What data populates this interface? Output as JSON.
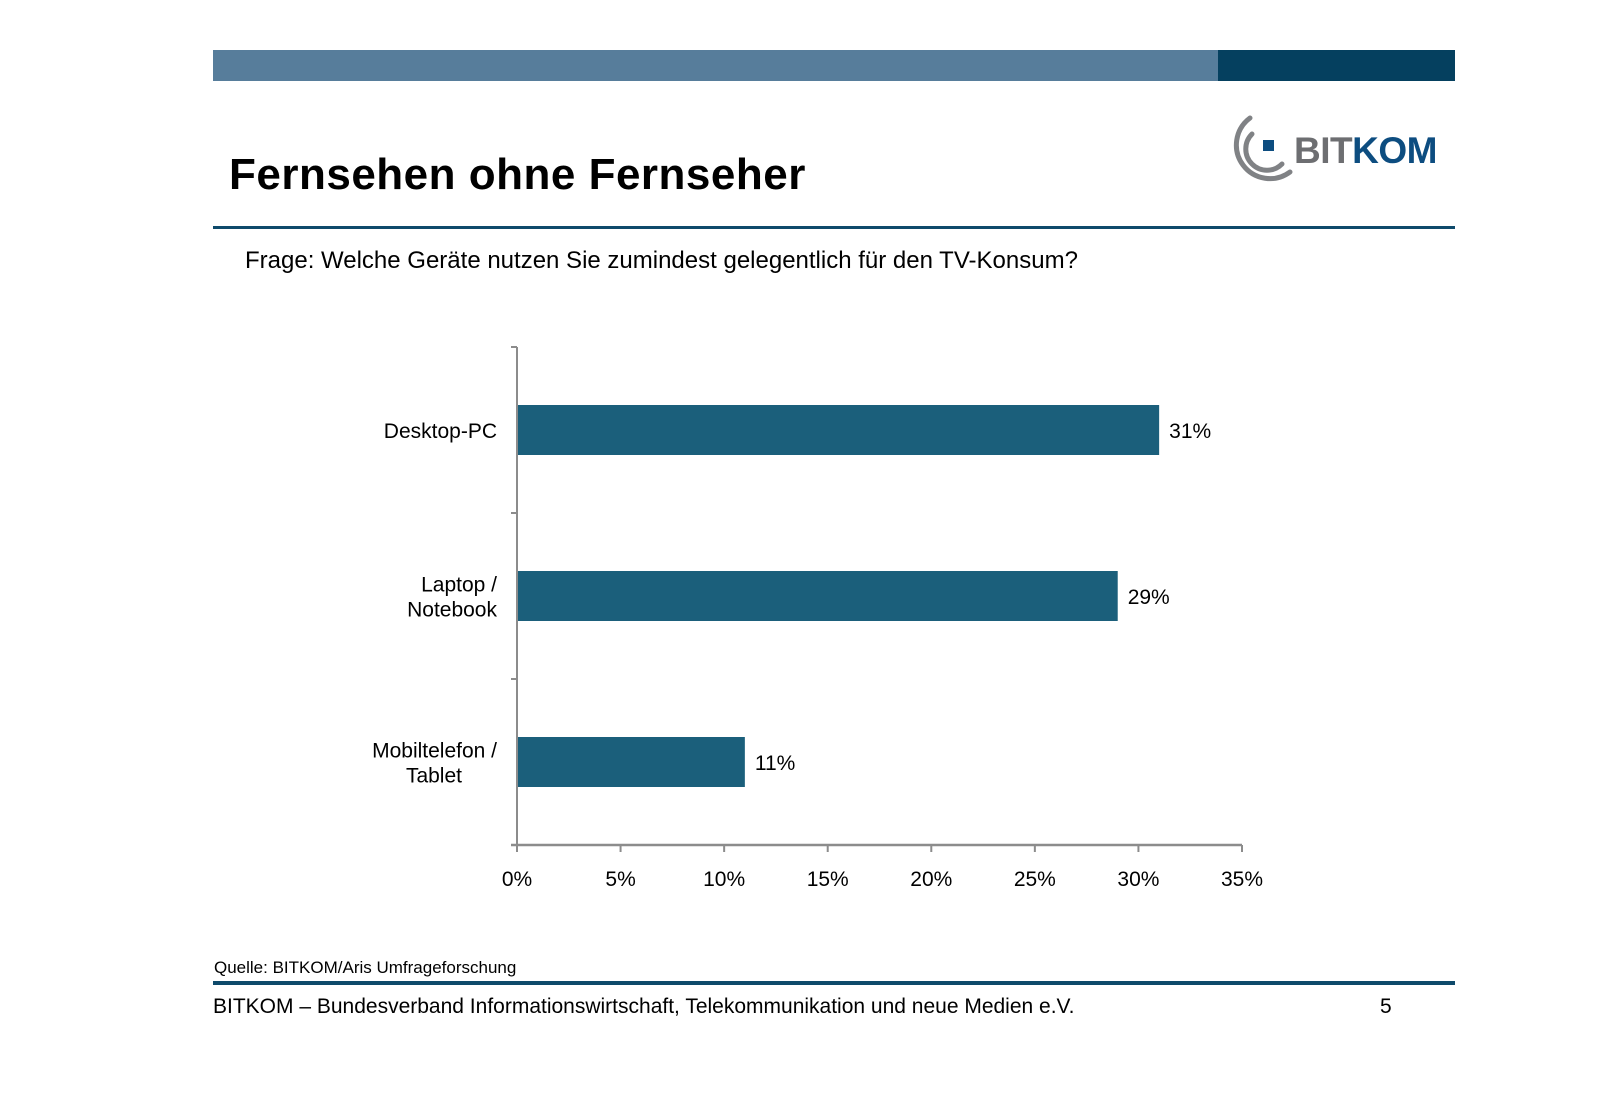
{
  "slide": {
    "title": "Fernsehen ohne Fernseher",
    "question": "Frage: Welche Geräte nutzen Sie zumindest gelegentlich für den TV-Konsum?",
    "logo": {
      "part1": "BIT",
      "part2": "KOM",
      "icon": "bitkom-arc-logo-icon"
    },
    "source": "Quelle: BITKOM/Aris Umfrageforschung",
    "footer": "BITKOM – Bundesverband Informationswirtschaft, Telekommunikation und neue Medien e.V.",
    "page_number": "5"
  },
  "colors": {
    "bar": "#1b5f7b",
    "topbar_light": "#577d9b",
    "topbar_dark": "#05405f",
    "rule": "#0e4a6b",
    "axis": "#8c8c8c",
    "logo_gray": "#6d6e71",
    "logo_blue": "#0d4d80"
  },
  "chart_data": {
    "type": "bar",
    "orientation": "horizontal",
    "title": "",
    "xlabel": "",
    "ylabel": "",
    "categories": [
      [
        "Desktop-PC"
      ],
      [
        "Laptop /",
        "Notebook"
      ],
      [
        "Mobiltelefon /",
        "Tablet"
      ]
    ],
    "category_names": [
      "Desktop-PC",
      "Laptop / Notebook",
      "Mobiltelefon / Tablet"
    ],
    "values": [
      31,
      29,
      11
    ],
    "data_labels": [
      "31%",
      "29%",
      "11%"
    ],
    "xlim": [
      0,
      35
    ],
    "x_ticks": [
      0,
      5,
      10,
      15,
      20,
      25,
      30,
      35
    ],
    "x_tick_labels": [
      "0%",
      "5%",
      "10%",
      "15%",
      "20%",
      "25%",
      "30%",
      "35%"
    ],
    "grid": false,
    "legend": "none"
  }
}
